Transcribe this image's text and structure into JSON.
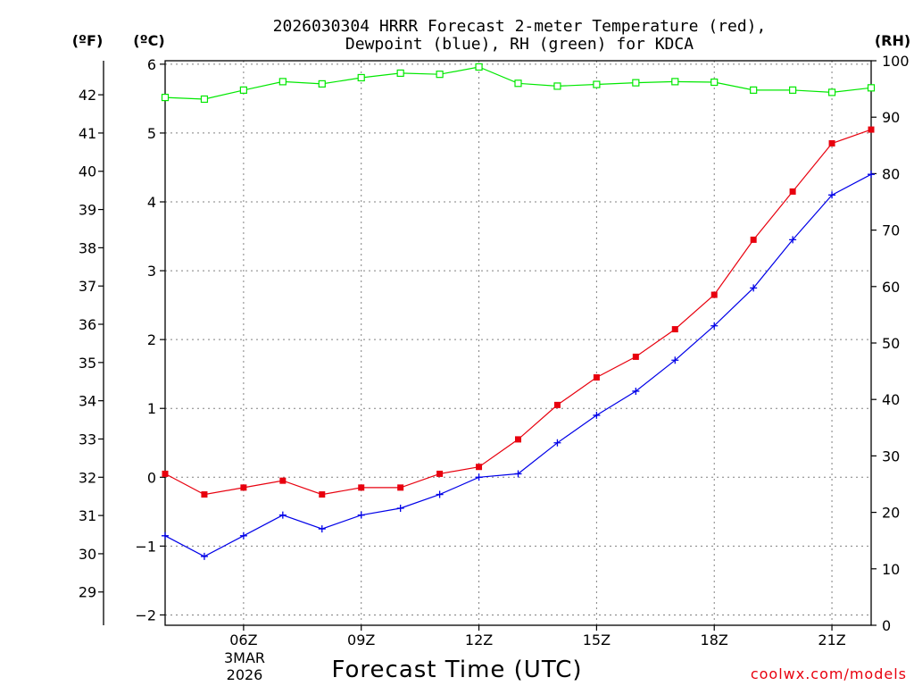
{
  "chart_data": {
    "type": "line",
    "title_lines": [
      "2026030304 HRRR Forecast 2-meter Temperature (red),",
      "Dewpoint (blue), RH (green) for KDCA"
    ],
    "xlabel": "Forecast Time (UTC)",
    "credit": "coolwx.com/models",
    "date_label": [
      "3MAR",
      "2026"
    ],
    "units": {
      "fahrenheit": "(ºF)",
      "celsius": "(ºC)",
      "rh": "(RH)"
    },
    "x_hours": [
      4,
      5,
      6,
      7,
      8,
      9,
      10,
      11,
      12,
      13,
      14,
      15,
      16,
      17,
      18,
      19,
      20,
      21,
      22
    ],
    "xlim": [
      4,
      22
    ],
    "x_ticks": [
      {
        "hour": 6,
        "label": "06Z"
      },
      {
        "hour": 9,
        "label": "09Z"
      },
      {
        "hour": 12,
        "label": "12Z"
      },
      {
        "hour": 15,
        "label": "15Z"
      },
      {
        "hour": 18,
        "label": "18Z"
      },
      {
        "hour": 21,
        "label": "21Z"
      }
    ],
    "ylim_c": [
      -2.15,
      6.05
    ],
    "ylim_rh": [
      0,
      100
    ],
    "celsius_ticks": [
      "-2",
      "-1",
      "0",
      "1",
      "2",
      "3",
      "4",
      "5",
      "6"
    ],
    "fahrenheit_ticks": [
      "29",
      "30",
      "31",
      "32",
      "33",
      "34",
      "35",
      "36",
      "37",
      "38",
      "39",
      "40",
      "41",
      "42"
    ],
    "rh_ticks": [
      "0",
      "10",
      "20",
      "30",
      "40",
      "50",
      "60",
      "70",
      "80",
      "90",
      "100"
    ],
    "series": [
      {
        "name": "Temperature",
        "color": "#e8000e",
        "marker": "filled-square",
        "axis": "celsius",
        "values": [
          0.05,
          -0.25,
          -0.15,
          -0.05,
          -0.25,
          -0.15,
          -0.15,
          0.05,
          0.15,
          0.55,
          1.05,
          1.45,
          1.75,
          2.15,
          2.65,
          3.45,
          4.15,
          4.85,
          5.05
        ]
      },
      {
        "name": "Dewpoint",
        "color": "#0000e8",
        "marker": "plus",
        "axis": "celsius",
        "values": [
          -0.85,
          -1.15,
          -0.85,
          -0.55,
          -0.75,
          -0.55,
          -0.45,
          -0.25,
          0.0,
          0.05,
          0.5,
          0.9,
          1.25,
          1.7,
          2.2,
          2.75,
          3.45,
          4.1,
          4.4
        ]
      },
      {
        "name": "RH",
        "color": "#00e800",
        "marker": "open-square",
        "axis": "rh",
        "values": [
          93.5,
          93.2,
          94.8,
          96.3,
          95.9,
          97.0,
          97.8,
          97.6,
          98.9,
          96.0,
          95.5,
          95.8,
          96.1,
          96.3,
          96.2,
          94.8,
          94.8,
          94.4,
          95.2
        ]
      }
    ]
  }
}
